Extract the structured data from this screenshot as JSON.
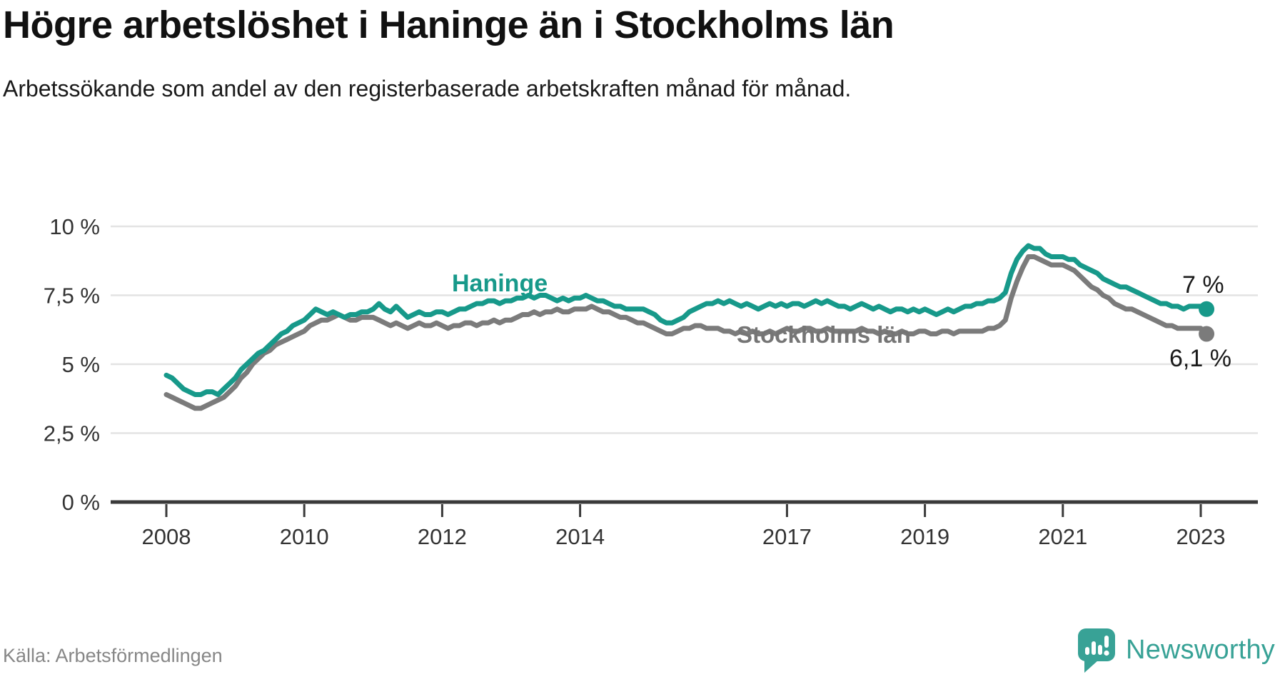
{
  "title": "Högre arbetslöshet i Haninge än i Stockholms län",
  "subtitle": "Arbetssökande som andel av den registerbaserade arbetskraften månad för månad.",
  "source": "Källa: Arbetsförmedlingen",
  "branding": {
    "name": "Newsworthy",
    "color": "#38a296",
    "icon": "bar-chart-speech-bubble-icon"
  },
  "chart_data": {
    "type": "line",
    "title": "Högre arbetslöshet i Haninge än i Stockholms län",
    "subtitle": "Arbetssökande som andel av den registerbaserade arbetskraften månad för månad.",
    "x_start": "2008-01",
    "frequency": "monthly",
    "x_tick_years": [
      2008,
      2010,
      2012,
      2014,
      2017,
      2019,
      2021,
      2023
    ],
    "y_ticks": [
      {
        "value": 0,
        "label": "0 %"
      },
      {
        "value": 2.5,
        "label": "2,5 %"
      },
      {
        "value": 5,
        "label": "5 %"
      },
      {
        "value": 7.5,
        "label": "7,5 %"
      },
      {
        "value": 10,
        "label": "10 %"
      }
    ],
    "ylim": [
      0,
      10
    ],
    "grid": true,
    "legend": "inline-labels",
    "axis_color": "#3a3a3a",
    "grid_color": "#e3e3e3",
    "tick_text_color": "#333333",
    "end_label_color": "#1a1a1a",
    "series": [
      {
        "name": "Haninge",
        "color": "#17998a",
        "end_label": "7 %",
        "end_value": 7.0,
        "values": [
          4.6,
          4.5,
          4.3,
          4.1,
          4.0,
          3.9,
          3.9,
          4.0,
          4.0,
          3.9,
          4.1,
          4.3,
          4.5,
          4.8,
          5.0,
          5.2,
          5.4,
          5.5,
          5.7,
          5.9,
          6.1,
          6.2,
          6.4,
          6.5,
          6.6,
          6.8,
          7.0,
          6.9,
          6.8,
          6.9,
          6.8,
          6.7,
          6.8,
          6.8,
          6.9,
          6.9,
          7.0,
          7.2,
          7.0,
          6.9,
          7.1,
          6.9,
          6.7,
          6.8,
          6.9,
          6.8,
          6.8,
          6.9,
          6.9,
          6.8,
          6.9,
          7.0,
          7.0,
          7.1,
          7.2,
          7.2,
          7.3,
          7.3,
          7.2,
          7.3,
          7.3,
          7.4,
          7.4,
          7.5,
          7.4,
          7.5,
          7.5,
          7.4,
          7.3,
          7.4,
          7.3,
          7.4,
          7.4,
          7.5,
          7.4,
          7.3,
          7.3,
          7.2,
          7.1,
          7.1,
          7.0,
          7.0,
          7.0,
          7.0,
          6.9,
          6.8,
          6.6,
          6.5,
          6.5,
          6.6,
          6.7,
          6.9,
          7.0,
          7.1,
          7.2,
          7.2,
          7.3,
          7.2,
          7.3,
          7.2,
          7.1,
          7.2,
          7.1,
          7.0,
          7.1,
          7.2,
          7.1,
          7.2,
          7.1,
          7.2,
          7.2,
          7.1,
          7.2,
          7.3,
          7.2,
          7.3,
          7.2,
          7.1,
          7.1,
          7.0,
          7.1,
          7.2,
          7.1,
          7.0,
          7.1,
          7.0,
          6.9,
          7.0,
          7.0,
          6.9,
          7.0,
          6.9,
          7.0,
          6.9,
          6.8,
          6.9,
          7.0,
          6.9,
          7.0,
          7.1,
          7.1,
          7.2,
          7.2,
          7.3,
          7.3,
          7.4,
          7.6,
          8.3,
          8.8,
          9.1,
          9.3,
          9.2,
          9.2,
          9.0,
          8.9,
          8.9,
          8.9,
          8.8,
          8.8,
          8.6,
          8.5,
          8.4,
          8.3,
          8.1,
          8.0,
          7.9,
          7.8,
          7.8,
          7.7,
          7.6,
          7.5,
          7.4,
          7.3,
          7.2,
          7.2,
          7.1,
          7.1,
          7.0,
          7.1,
          7.1,
          7.1,
          7.0
        ]
      },
      {
        "name": "Stockholms län",
        "color": "#7b7b7b",
        "end_label": "6,1 %",
        "end_value": 6.1,
        "values": [
          3.9,
          3.8,
          3.7,
          3.6,
          3.5,
          3.4,
          3.4,
          3.5,
          3.6,
          3.7,
          3.8,
          4.0,
          4.2,
          4.5,
          4.7,
          5.0,
          5.2,
          5.4,
          5.5,
          5.7,
          5.8,
          5.9,
          6.0,
          6.1,
          6.2,
          6.4,
          6.5,
          6.6,
          6.6,
          6.7,
          6.8,
          6.7,
          6.6,
          6.6,
          6.7,
          6.7,
          6.7,
          6.6,
          6.5,
          6.4,
          6.5,
          6.4,
          6.3,
          6.4,
          6.5,
          6.4,
          6.4,
          6.5,
          6.4,
          6.3,
          6.4,
          6.4,
          6.5,
          6.5,
          6.4,
          6.5,
          6.5,
          6.6,
          6.5,
          6.6,
          6.6,
          6.7,
          6.8,
          6.8,
          6.9,
          6.8,
          6.9,
          6.9,
          7.0,
          6.9,
          6.9,
          7.0,
          7.0,
          7.0,
          7.1,
          7.0,
          6.9,
          6.9,
          6.8,
          6.7,
          6.7,
          6.6,
          6.5,
          6.5,
          6.4,
          6.3,
          6.2,
          6.1,
          6.1,
          6.2,
          6.3,
          6.3,
          6.4,
          6.4,
          6.3,
          6.3,
          6.3,
          6.2,
          6.2,
          6.1,
          6.2,
          6.1,
          6.2,
          6.1,
          6.1,
          6.2,
          6.1,
          6.2,
          6.3,
          6.2,
          6.2,
          6.3,
          6.3,
          6.2,
          6.2,
          6.3,
          6.2,
          6.2,
          6.2,
          6.2,
          6.2,
          6.3,
          6.2,
          6.2,
          6.1,
          6.2,
          6.1,
          6.1,
          6.2,
          6.1,
          6.1,
          6.2,
          6.2,
          6.1,
          6.1,
          6.2,
          6.2,
          6.1,
          6.2,
          6.2,
          6.2,
          6.2,
          6.2,
          6.3,
          6.3,
          6.4,
          6.6,
          7.4,
          8.0,
          8.5,
          8.9,
          8.9,
          8.8,
          8.7,
          8.6,
          8.6,
          8.6,
          8.5,
          8.4,
          8.2,
          8.0,
          7.8,
          7.7,
          7.5,
          7.4,
          7.2,
          7.1,
          7.0,
          7.0,
          6.9,
          6.8,
          6.7,
          6.6,
          6.5,
          6.4,
          6.4,
          6.3,
          6.3,
          6.3,
          6.3,
          6.3,
          6.1
        ]
      }
    ]
  }
}
